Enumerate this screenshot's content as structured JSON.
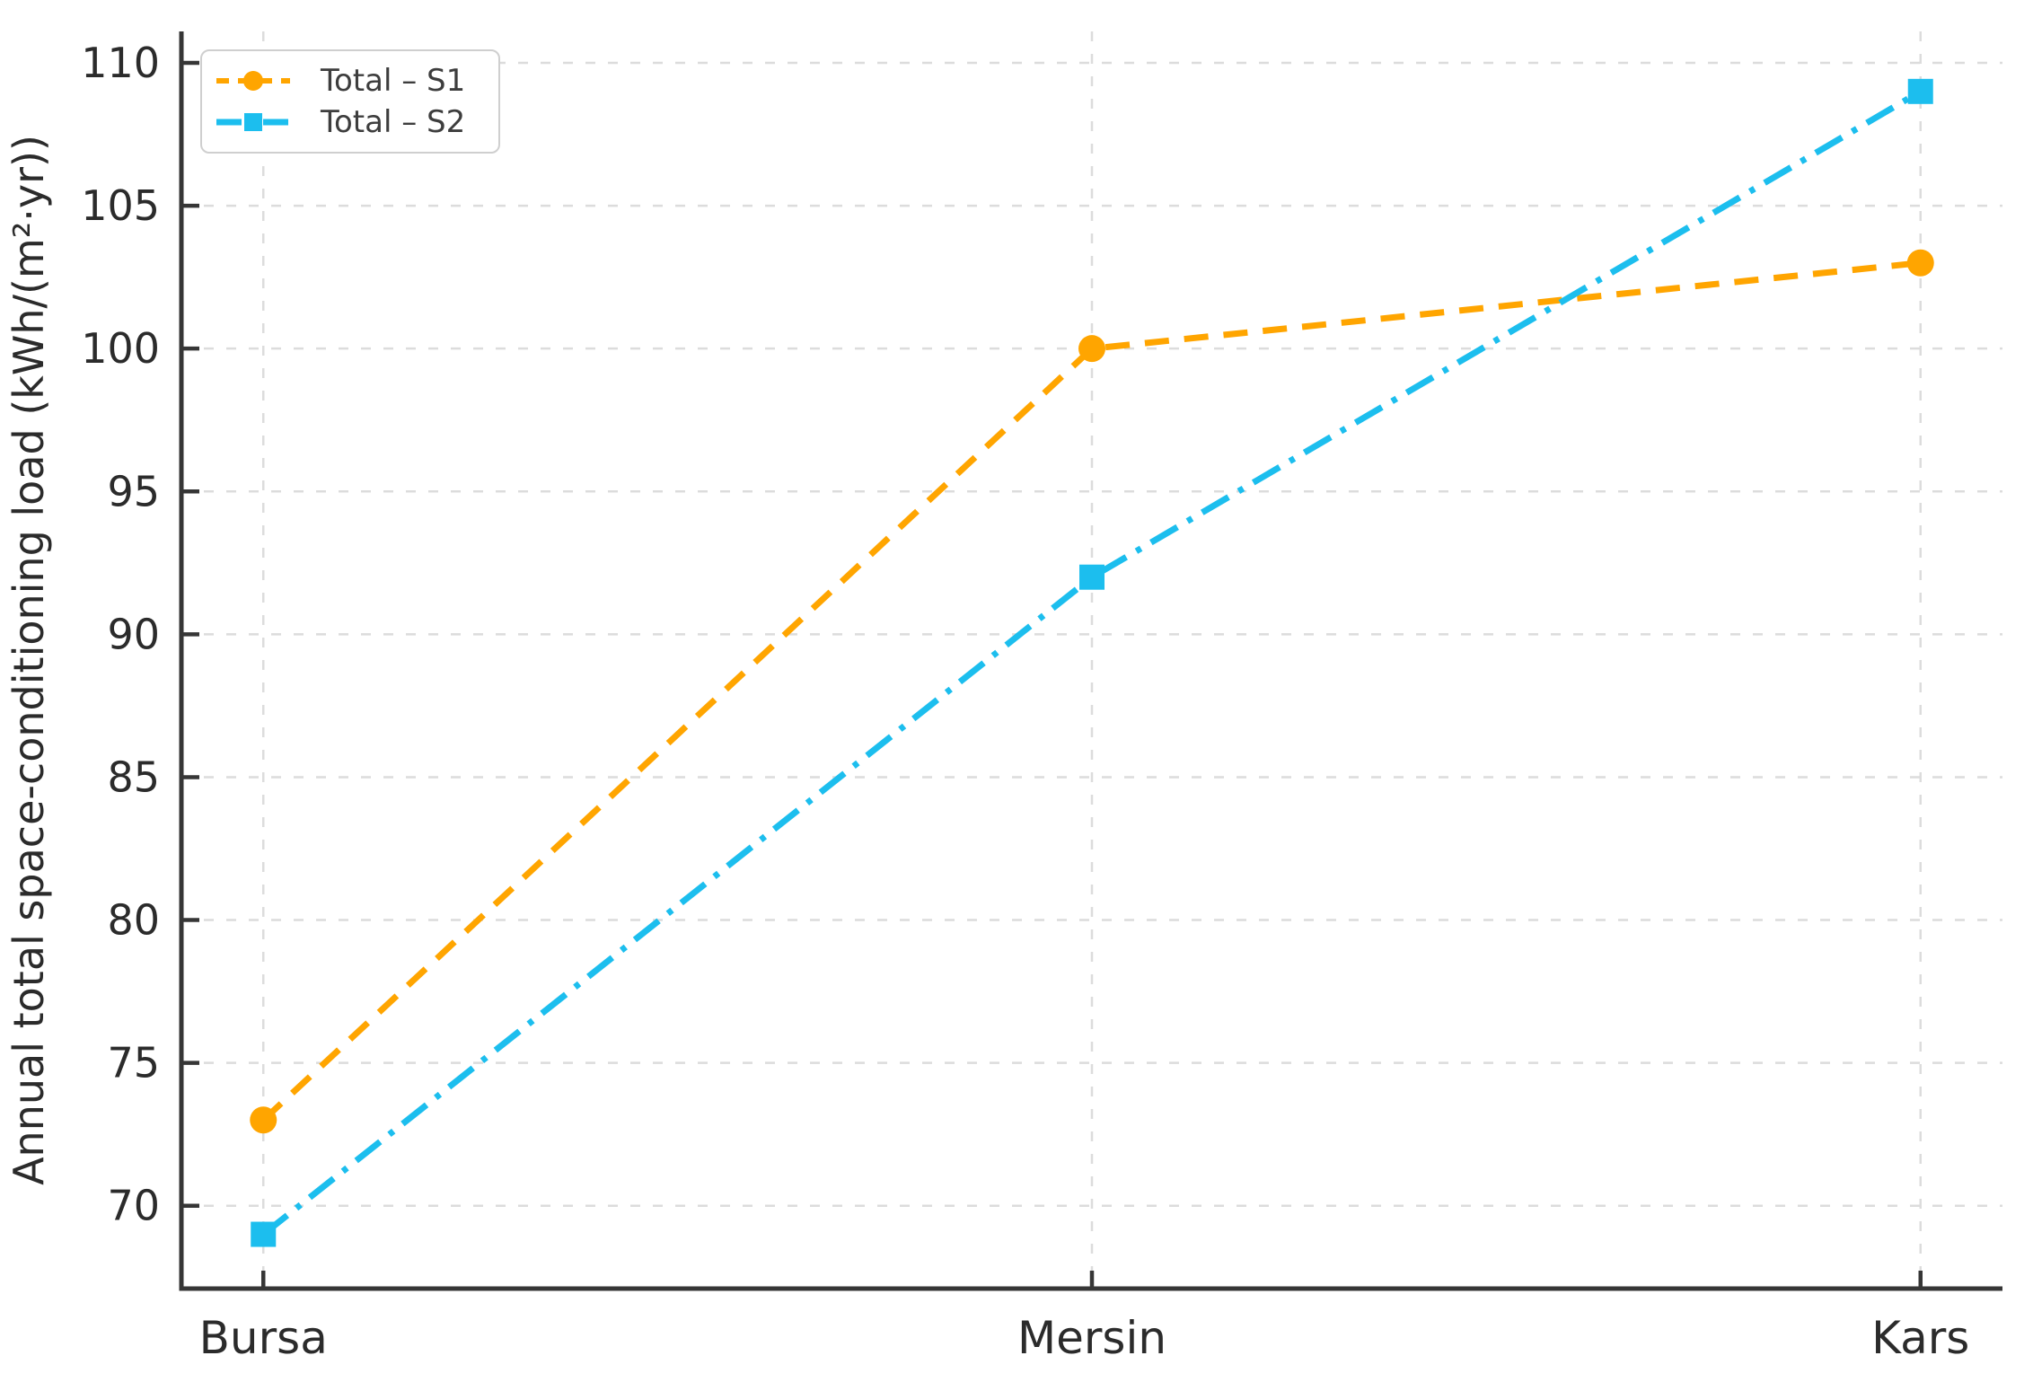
{
  "chart_data": {
    "type": "line",
    "categories": [
      "Bursa",
      "Mersin",
      "Kars"
    ],
    "series": [
      {
        "name": "Total – S1",
        "values": [
          73,
          100,
          103
        ],
        "color": "#FFA500",
        "dash": "dashed",
        "marker": "circle"
      },
      {
        "name": "Total – S2",
        "values": [
          69,
          92,
          109
        ],
        "color": "#1CBEEE",
        "dash": "dashdot",
        "marker": "square"
      }
    ],
    "title": "",
    "xlabel": "",
    "ylabel": "Annual total space-conditioning load (kWh/(m²·yr))",
    "ylim": [
      67.1,
      111.1
    ],
    "yticks": [
      70,
      75,
      80,
      85,
      90,
      95,
      100,
      105,
      110
    ],
    "grid": true,
    "legend_position": "upper-left"
  },
  "colors": {
    "background": "#ffffff",
    "grid": "#dcdcdc",
    "spine": "#363636",
    "tick_text": "#2b2b2b",
    "legend_text": "#3d3d3d",
    "legend_border": "#cfcfcf"
  }
}
